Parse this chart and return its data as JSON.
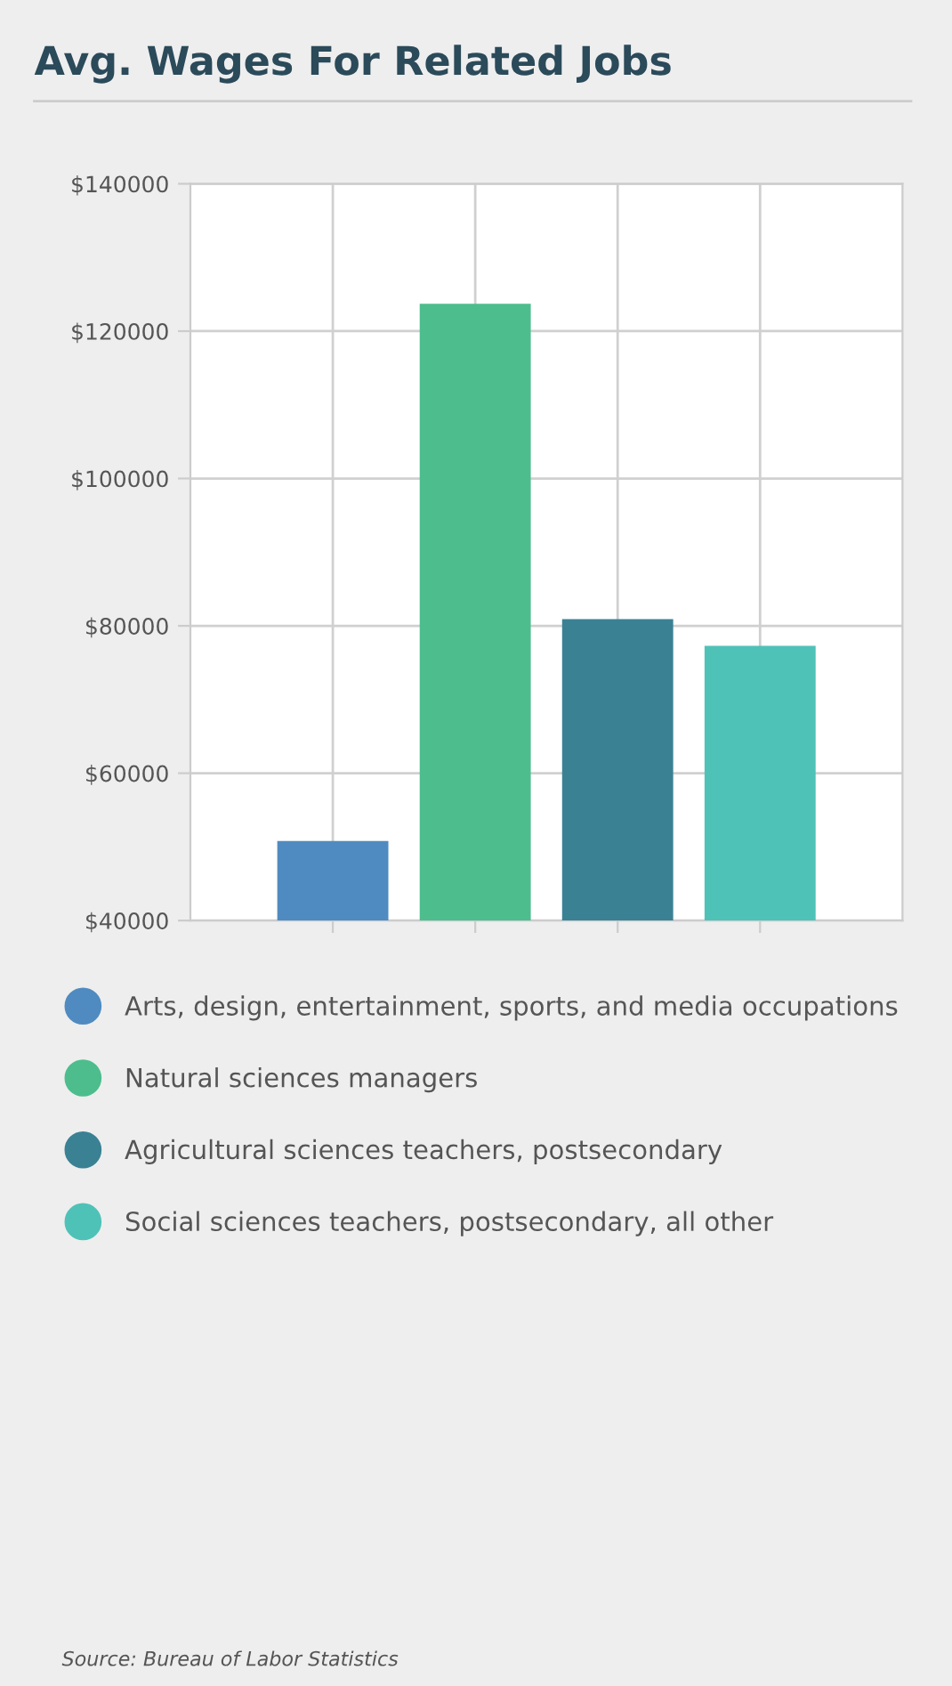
{
  "chart_data": {
    "type": "bar",
    "title": "Avg. Wages For Related Jobs",
    "categories": [
      null
    ],
    "series": [
      {
        "name": "Arts, design, entertainment, sports, and media occupations",
        "color": "#4f8bc0",
        "values": [
          50800
        ]
      },
      {
        "name": "Natural sciences managers",
        "color": "#4dbd8d",
        "values": [
          123700
        ]
      },
      {
        "name": "Agricultural sciences teachers, postsecondary",
        "color": "#3b8194",
        "values": [
          80900
        ]
      },
      {
        "name": "Social sciences teachers, postsecondary, all other",
        "color": "#4fc2b8",
        "values": [
          77300
        ]
      }
    ],
    "ylim": [
      40000,
      140000
    ],
    "yticks": [
      {
        "value": 40000,
        "label": "$40000"
      },
      {
        "value": 60000,
        "label": "$60000"
      },
      {
        "value": 80000,
        "label": "$80000"
      },
      {
        "value": 100000,
        "label": "$100000"
      },
      {
        "value": 120000,
        "label": "$120000"
      },
      {
        "value": 140000,
        "label": "$140000"
      }
    ],
    "grid": true,
    "legend": "bottom",
    "tick_labels": "y",
    "annotations": [
      "Source: Bureau of Labor Statistics"
    ]
  }
}
